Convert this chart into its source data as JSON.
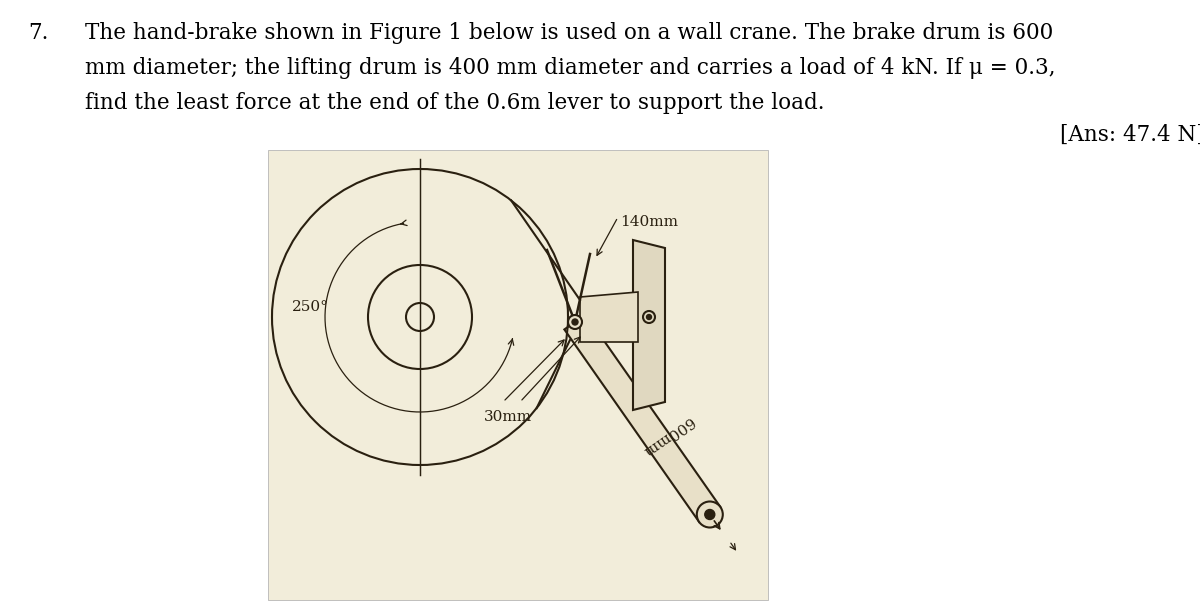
{
  "title_number": "7.",
  "text_line1": "The hand-brake shown in Figure 1 below is used on a wall crane. The brake drum is 600",
  "text_line2": "mm diameter; the lifting drum is 400 mm diameter and carries a load of 4 kN. If μ = 0.3,",
  "text_line3": "find the least force at the end of the 0.6m lever to support the load.",
  "answer": "[Ans: 47.4 N]",
  "bg_color": "#ffffff",
  "diagram_bg": "#f2edda",
  "line_color": "#2a2010",
  "text_color": "#000000",
  "fig_width": 12.0,
  "fig_height": 6.12,
  "dpi": 100
}
